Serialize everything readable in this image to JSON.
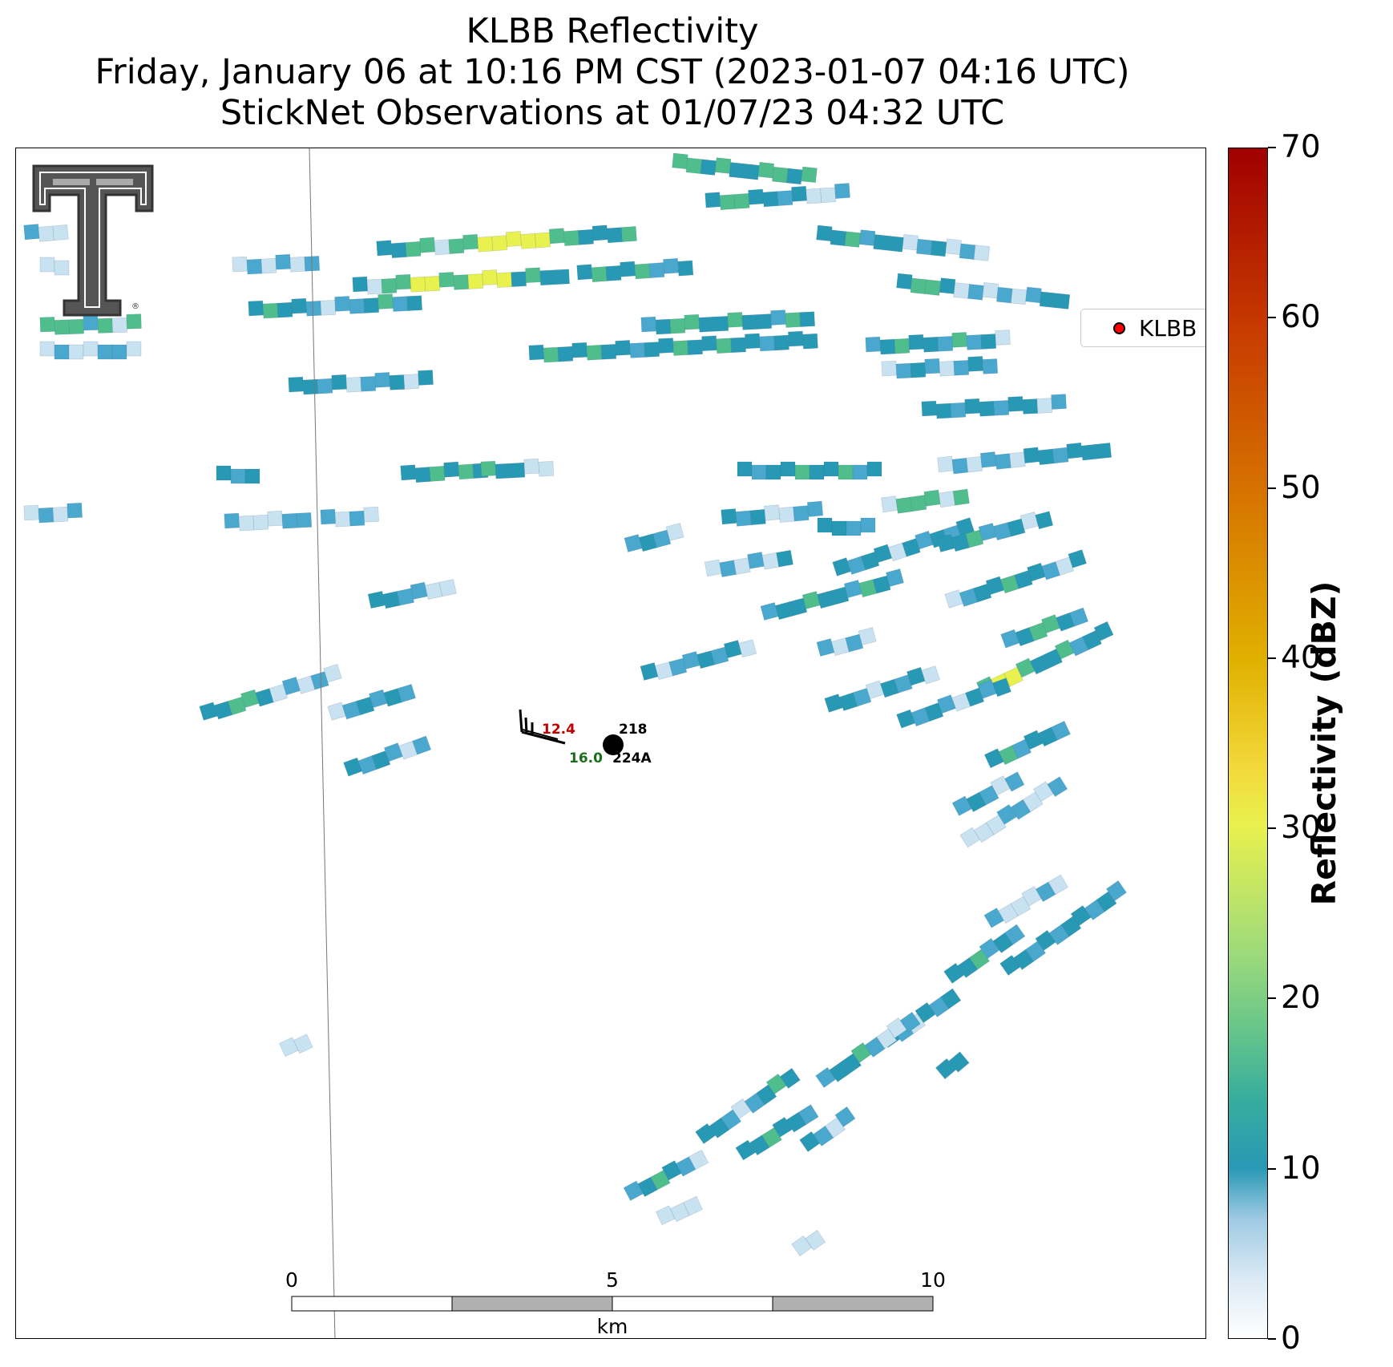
{
  "title": {
    "line1": "KLBB Reflectivity",
    "line2": "Friday, January 06 at 10:16 PM CST (2023-01-07 04:16 UTC)",
    "line3": "StickNet Observations at 01/07/23 04:32 UTC"
  },
  "legend": {
    "label": "KLBB",
    "marker_color": "#ff0000"
  },
  "colorbar": {
    "label": "Reflectivity (dBZ)",
    "min": 0,
    "max": 70,
    "ticks": [
      0,
      10,
      20,
      30,
      40,
      50,
      60,
      70
    ],
    "tick_labels": [
      "0",
      "10",
      "20",
      "30",
      "40",
      "50",
      "60",
      "70"
    ]
  },
  "station": {
    "temperature": "12.4",
    "dewpoint": "16.0",
    "id_top": "218",
    "id_bottom": "224A",
    "temperature_color": "#c00000",
    "dewpoint_color": "#1a6e1a"
  },
  "scale_bar": {
    "unit": "km",
    "labels": [
      "0",
      "5",
      "10"
    ]
  },
  "logo": {
    "name": "texas-tech-double-t-logo",
    "registered_mark": "®"
  },
  "colors": {
    "bin_light": "#c9e2f1",
    "bin_mid": "#4aa8cf",
    "bin_teal": "#2899b4",
    "bin_green": "#4fbe8c",
    "bin_lightgreen": "#8fd27c",
    "bin_yellow": "#e8f14e"
  }
}
